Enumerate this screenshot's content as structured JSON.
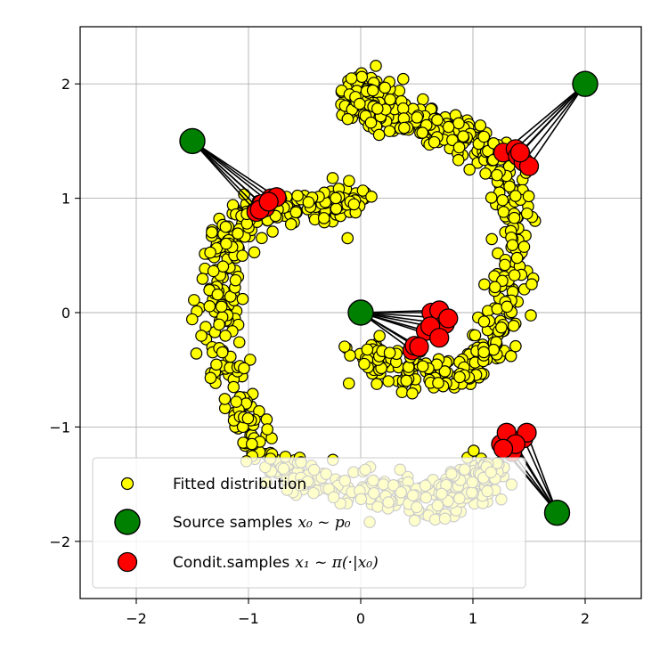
{
  "chart_data": {
    "type": "scatter",
    "title": "",
    "xlabel": "",
    "ylabel": "",
    "xlim": [
      -2.5,
      2.5
    ],
    "ylim": [
      -2.5,
      2.5
    ],
    "xticks": [
      -2,
      -1,
      0,
      1,
      2
    ],
    "yticks": [
      -2,
      -1,
      0,
      1,
      2
    ],
    "xtick_labels": [
      "−2",
      "−1",
      "0",
      "1",
      "2"
    ],
    "ytick_labels": [
      "−2",
      "−1",
      "0",
      "1",
      "2"
    ],
    "grid": true,
    "legend_position": "lower-left",
    "series": [
      {
        "name": "Fitted distribution",
        "color": "#ffff00",
        "edge_color": "#000000",
        "shape": "two-arm spiral",
        "distribution": {
          "arm_a_start": [
            0.0,
            -0.4
          ],
          "arm_a_through": [
            [
              1.1,
              -0.4
            ],
            [
              1.3,
              1.2
            ],
            [
              0.2,
              1.8
            ]
          ],
          "arm_a_end": [
            0.0,
            1.9
          ],
          "arm_b_start": [
            0.0,
            1.0
          ],
          "arm_b_through": [
            [
              -1.2,
              0.6
            ],
            [
              -0.9,
              -1.2
            ],
            [
              0.5,
              -1.6
            ]
          ],
          "arm_b_end": [
            1.2,
            -1.4
          ],
          "spread": 0.09,
          "approx_points": 1200
        }
      },
      {
        "name": "Source samples",
        "name_math": "x₀ ~ p₀",
        "color": "#008000",
        "points": [
          [
            -1.5,
            1.5
          ],
          [
            2.0,
            2.0
          ],
          [
            0.0,
            0.0
          ],
          [
            1.75,
            -1.75
          ]
        ]
      },
      {
        "name": "Condit.samples",
        "name_math": "x₁ ~ π(·|x₀)",
        "color": "#ff0000",
        "groups": [
          {
            "source": [
              -1.5,
              1.5
            ],
            "points": [
              [
                -0.93,
                0.88
              ],
              [
                -0.88,
                0.95
              ],
              [
                -0.85,
                0.92
              ],
              [
                -0.8,
                1.0
              ],
              [
                -0.75,
                1.01
              ],
              [
                -0.9,
                0.9
              ],
              [
                -0.82,
                0.97
              ]
            ]
          },
          {
            "source": [
              2.0,
              2.0
            ],
            "points": [
              [
                1.27,
                1.4
              ],
              [
                1.38,
                1.43
              ],
              [
                1.4,
                1.37
              ],
              [
                1.45,
                1.32
              ],
              [
                1.5,
                1.28
              ],
              [
                1.42,
                1.4
              ]
            ]
          },
          {
            "source": [
              0.0,
              0.0
            ],
            "points": [
              [
                0.46,
                -0.33
              ],
              [
                0.48,
                -0.29
              ],
              [
                0.58,
                -0.16
              ],
              [
                0.63,
                0.0
              ],
              [
                0.7,
                0.02
              ],
              [
                0.75,
                -0.1
              ],
              [
                0.62,
                -0.12
              ],
              [
                0.78,
                -0.05
              ],
              [
                0.7,
                -0.22
              ],
              [
                0.52,
                -0.3
              ]
            ]
          },
          {
            "source": [
              1.75,
              -1.75
            ],
            "points": [
              [
                1.25,
                -1.15
              ],
              [
                1.3,
                -1.05
              ],
              [
                1.35,
                -1.22
              ],
              [
                1.45,
                -1.1
              ],
              [
                1.48,
                -1.05
              ],
              [
                1.38,
                -1.15
              ],
              [
                1.27,
                -1.19
              ]
            ]
          }
        ]
      }
    ]
  }
}
